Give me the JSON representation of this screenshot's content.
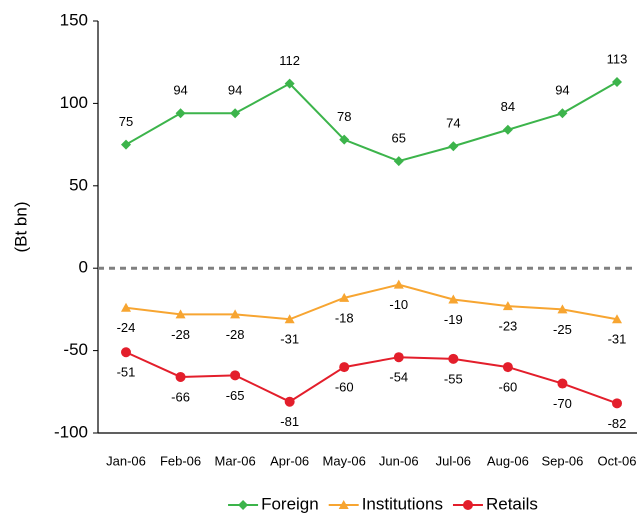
{
  "chart_data": {
    "type": "line",
    "y_label": "(Bt bn)",
    "categories": [
      "Jan-06",
      "Feb-06",
      "Mar-06",
      "Apr-06",
      "May-06",
      "Jun-06",
      "Jul-06",
      "Aug-06",
      "Sep-06",
      "Oct-06"
    ],
    "series": [
      {
        "name": "Foreign",
        "color": "#3cb44b",
        "marker": "diamond",
        "label_position": "above",
        "values": [
          75,
          94,
          94,
          112,
          78,
          65,
          74,
          84,
          94,
          113
        ]
      },
      {
        "name": "Institutions",
        "color": "#f7a531",
        "marker": "triangle",
        "label_position": "below",
        "values": [
          -24,
          -28,
          -28,
          -31,
          -18,
          -10,
          -19,
          -23,
          -25,
          -31
        ]
      },
      {
        "name": "Retails",
        "color": "#e31e2b",
        "marker": "circle",
        "label_position": "below",
        "values": [
          -51,
          -66,
          -65,
          -81,
          -60,
          -54,
          -55,
          -60,
          -70,
          -82
        ]
      }
    ],
    "ylim": [
      -100,
      150
    ],
    "yticks": [
      -100,
      -50,
      0,
      50,
      100,
      150
    ],
    "zero_line": "dashed",
    "legend": "bottom"
  }
}
